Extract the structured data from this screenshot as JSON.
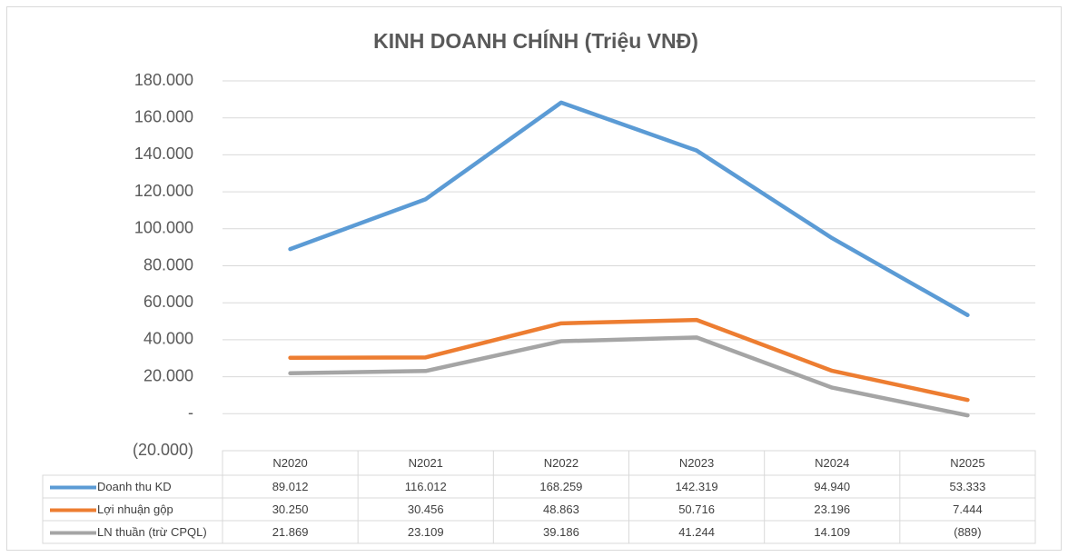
{
  "chart_data": {
    "type": "line",
    "title": "KINH DOANH CHÍNH (Triệu VNĐ)",
    "categories": [
      "N2020",
      "N2021",
      "N2022",
      "N2023",
      "N2024",
      "N2025"
    ],
    "series": [
      {
        "name": "Doanh thu KD",
        "color": "#5b9bd5",
        "values": [
          89012,
          116012,
          168259,
          142319,
          94940,
          53333
        ],
        "value_labels": [
          "89.012",
          "116.012",
          "168.259",
          "142.319",
          "94.940",
          "53.333"
        ]
      },
      {
        "name": "Lợi nhuận gộp",
        "color": "#ed7d31",
        "values": [
          30250,
          30456,
          48863,
          50716,
          23196,
          7444
        ],
        "value_labels": [
          "30.250",
          "30.456",
          "48.863",
          "50.716",
          "23.196",
          "7.444"
        ]
      },
      {
        "name": "LN thuần (trừ CPQL)",
        "color": "#a5a5a5",
        "values": [
          21869,
          23109,
          39186,
          41244,
          14109,
          -889
        ],
        "value_labels": [
          "21.869",
          "23.109",
          "39.186",
          "41.244",
          "14.109",
          "(889)"
        ]
      }
    ],
    "ylim": [
      -20000,
      180000
    ],
    "yticks": [
      {
        "value": -20000,
        "label": "(20.000)"
      },
      {
        "value": 0,
        "label": "-"
      },
      {
        "value": 20000,
        "label": "20.000"
      },
      {
        "value": 40000,
        "label": "40.000"
      },
      {
        "value": 60000,
        "label": "60.000"
      },
      {
        "value": 80000,
        "label": "80.000"
      },
      {
        "value": 100000,
        "label": "100.000"
      },
      {
        "value": 120000,
        "label": "120.000"
      },
      {
        "value": 140000,
        "label": "140.000"
      },
      {
        "value": 160000,
        "label": "160.000"
      },
      {
        "value": 180000,
        "label": "180.000"
      }
    ],
    "grid": true
  }
}
